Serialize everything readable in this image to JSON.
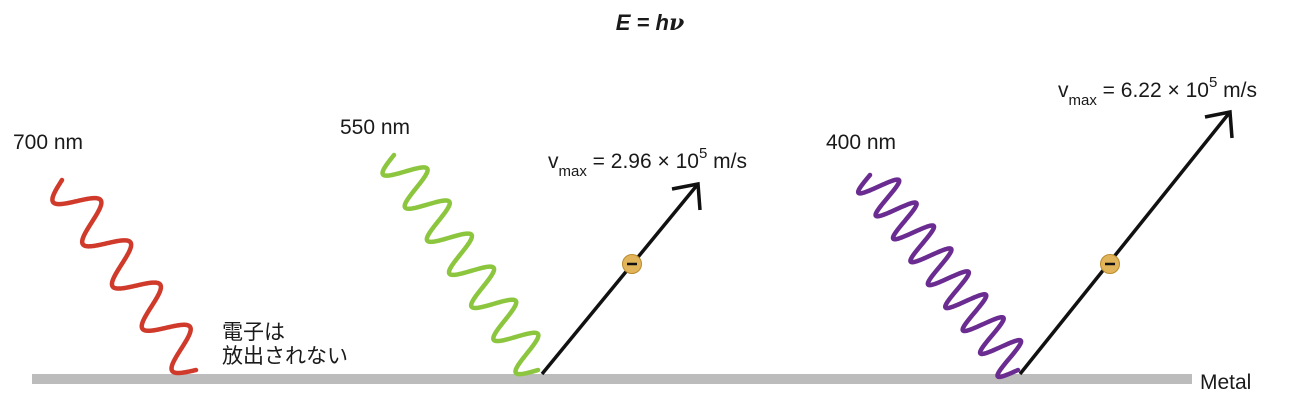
{
  "formula": {
    "E": "E",
    "equals": " = ",
    "h": "h",
    "nu": "ν"
  },
  "metal_label": "Metal",
  "colors": {
    "red_wave": "#cf3a2b",
    "green_wave": "#8cc63f",
    "purple_wave": "#6a2c91",
    "metal": "#bcbcbc",
    "electron": "#e2b45a",
    "arrow": "#111111"
  },
  "photons": [
    {
      "wavelength_label": "700 nm",
      "color": "#cf3a2b"
    },
    {
      "wavelength_label": "550 nm",
      "color": "#8cc63f"
    },
    {
      "wavelength_label": "400 nm",
      "color": "#6a2c91"
    }
  ],
  "no_emission": {
    "line1": "電子は",
    "line2": "放出されない"
  },
  "electrons": [
    {
      "v_symbol": "v",
      "v_subscript": "max",
      "equals": " = ",
      "mantissa": "2.96",
      "times": " × ",
      "base": "10",
      "exponent": "5",
      "unit": " m/s",
      "electron_sign": "−"
    },
    {
      "v_symbol": "v",
      "v_subscript": "max",
      "equals": " = ",
      "mantissa": "6.22",
      "times": " × ",
      "base": "10",
      "exponent": "5",
      "unit": " m/s",
      "electron_sign": "−"
    }
  ]
}
